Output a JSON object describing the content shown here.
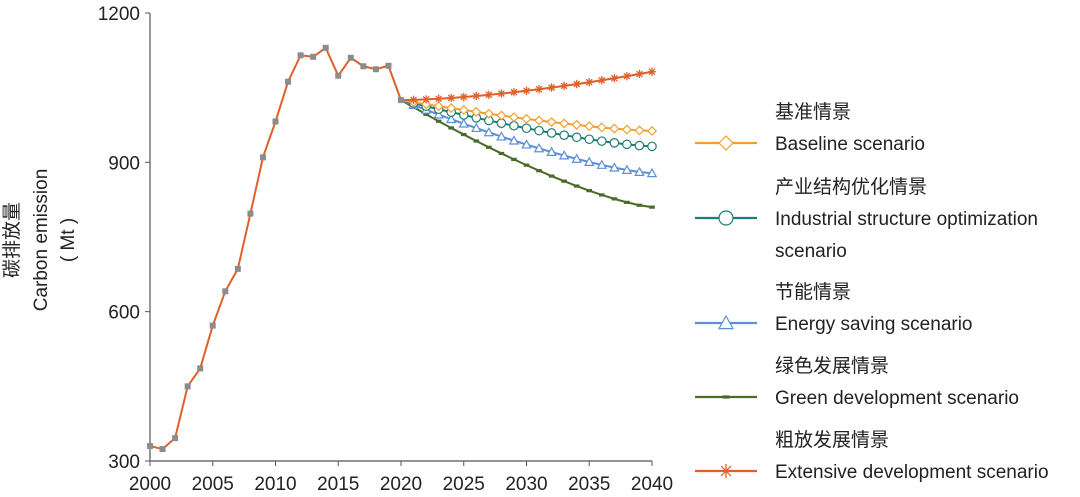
{
  "chart_data": {
    "type": "line",
    "title": "",
    "xlabel": "",
    "ylabel": {
      "zh": "碳排放量",
      "en": "Carbon emission",
      "unit": "( Mt )"
    },
    "xlim": [
      2000,
      2040
    ],
    "ylim": [
      300,
      1200
    ],
    "x_ticks": [
      "2000",
      "2005",
      "2010",
      "2015",
      "2020",
      "2025",
      "2030",
      "2035",
      "2040"
    ],
    "y_ticks": [
      "300",
      "600",
      "900",
      "1200"
    ],
    "grid": false,
    "legend_position": "right",
    "historical": {
      "x": [
        2000,
        2001,
        2002,
        2003,
        2004,
        2005,
        2006,
        2007,
        2008,
        2009,
        2010,
        2011,
        2012,
        2013,
        2014,
        2015,
        2016,
        2017,
        2018,
        2019,
        2020
      ],
      "values": [
        330,
        324,
        346,
        450,
        486,
        572,
        641,
        686,
        797,
        910,
        982,
        1062,
        1115,
        1112,
        1130,
        1074,
        1110,
        1093,
        1087,
        1094,
        1025
      ]
    },
    "series": [
      {
        "name_zh": "基准情景",
        "name_en": "Baseline scenario",
        "name_en_line2": "",
        "color": "#f0a030",
        "marker": "diamond",
        "values_2040": 963
      },
      {
        "name_zh": "产业结构优化情景",
        "name_en": "Industrial structure optimization",
        "name_en_line2": "scenario",
        "color": "#1e7d74",
        "marker": "circle",
        "values_2040": 932
      },
      {
        "name_zh": "节能情景",
        "name_en": "Energy saving scenario",
        "name_en_line2": "",
        "color": "#5b8fd6",
        "marker": "triangle",
        "values_2040": 878
      },
      {
        "name_zh": "绿色发展情景",
        "name_en": "Green development scenario",
        "name_en_line2": "",
        "color": "#4a6a2a",
        "marker": "dash",
        "values_2040": 810
      },
      {
        "name_zh": "粗放发展情景",
        "name_en": "Extensive development scenario",
        "name_en_line2": "",
        "color": "#e0602a",
        "marker": "asterisk",
        "values_2040": 1082
      }
    ],
    "projection_start_value": 1025
  },
  "colors": {
    "history_line": "#e0602a",
    "history_marker": "#8c8c8c",
    "axis": "#555555"
  }
}
